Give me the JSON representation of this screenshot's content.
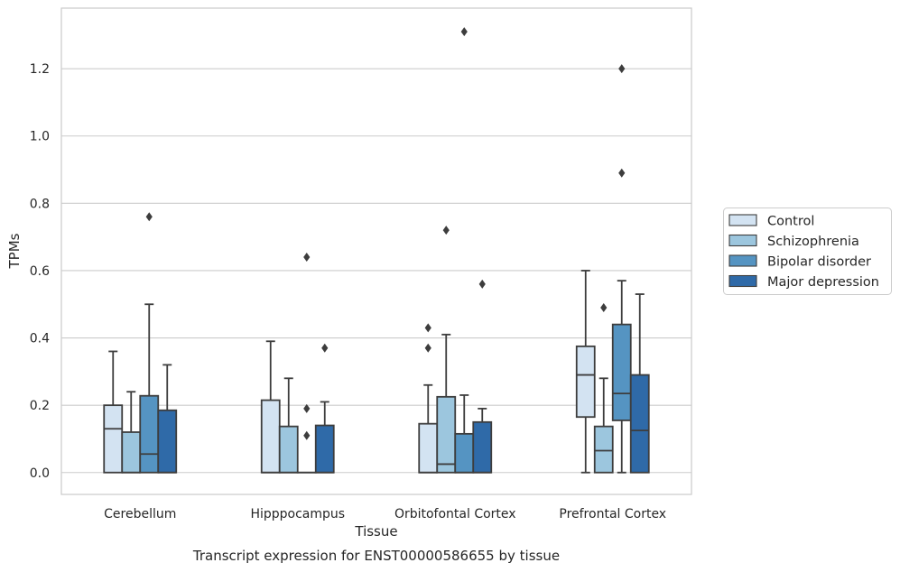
{
  "chart_data": {
    "type": "box",
    "xlabel": "Tissue",
    "ylabel": "TPMs",
    "caption": "Transcript expression for ENST00000586655 by tissue",
    "categories": [
      "Cerebellum",
      "Hipppocampus",
      "Orbitofontal Cortex",
      "Prefrontal Cortex"
    ],
    "ylim": [
      -0.065,
      1.38
    ],
    "yticks": [
      "0.0",
      "0.2",
      "0.4",
      "0.6",
      "0.8",
      "1.0",
      "1.2"
    ],
    "grid": true,
    "legend_placement": "right",
    "series": [
      {
        "name": "Control",
        "color": "#d3e3f2",
        "boxes": [
          {
            "q1": 0.0,
            "median": 0.13,
            "q3": 0.2,
            "whislo": 0.0,
            "whishi": 0.36,
            "fliers": []
          },
          {
            "q1": 0.0,
            "median": 0.0,
            "q3": 0.215,
            "whislo": 0.0,
            "whishi": 0.39,
            "fliers": []
          },
          {
            "q1": 0.0,
            "median": 0.0,
            "q3": 0.145,
            "whislo": 0.0,
            "whishi": 0.26,
            "fliers": [
              0.37,
              0.43
            ]
          },
          {
            "q1": 0.165,
            "median": 0.29,
            "q3": 0.375,
            "whislo": 0.0,
            "whishi": 0.6,
            "fliers": []
          }
        ]
      },
      {
        "name": "Schizophrenia",
        "color": "#9cc6de",
        "boxes": [
          {
            "q1": 0.0,
            "median": 0.0,
            "q3": 0.12,
            "whislo": 0.0,
            "whishi": 0.24,
            "fliers": []
          },
          {
            "q1": 0.0,
            "median": 0.0,
            "q3": 0.137,
            "whislo": 0.0,
            "whishi": 0.28,
            "fliers": []
          },
          {
            "q1": 0.0,
            "median": 0.025,
            "q3": 0.225,
            "whislo": 0.0,
            "whishi": 0.41,
            "fliers": [
              0.72
            ]
          },
          {
            "q1": 0.0,
            "median": 0.065,
            "q3": 0.137,
            "whislo": 0.0,
            "whishi": 0.28,
            "fliers": [
              0.49
            ]
          }
        ]
      },
      {
        "name": "Bipolar disorder",
        "color": "#5594c2",
        "boxes": [
          {
            "q1": 0.0,
            "median": 0.055,
            "q3": 0.228,
            "whislo": 0.0,
            "whishi": 0.5,
            "fliers": [
              0.76
            ]
          },
          {
            "q1": 0.0,
            "median": 0.0,
            "q3": 0.0,
            "whislo": 0.0,
            "whishi": 0.0,
            "fliers": [
              0.11,
              0.19,
              0.64
            ]
          },
          {
            "q1": 0.0,
            "median": 0.0,
            "q3": 0.115,
            "whislo": 0.0,
            "whishi": 0.23,
            "fliers": [
              1.31
            ]
          },
          {
            "q1": 0.155,
            "median": 0.235,
            "q3": 0.44,
            "whislo": 0.0,
            "whishi": 0.57,
            "fliers": [
              0.89,
              1.2
            ]
          }
        ]
      },
      {
        "name": "Major depression",
        "color": "#2f6aa8",
        "boxes": [
          {
            "q1": 0.0,
            "median": 0.0,
            "q3": 0.185,
            "whislo": 0.0,
            "whishi": 0.32,
            "fliers": []
          },
          {
            "q1": 0.0,
            "median": 0.0,
            "q3": 0.14,
            "whislo": 0.0,
            "whishi": 0.21,
            "fliers": [
              0.37
            ]
          },
          {
            "q1": 0.0,
            "median": 0.0,
            "q3": 0.15,
            "whislo": 0.0,
            "whishi": 0.19,
            "fliers": [
              0.56
            ]
          },
          {
            "q1": 0.0,
            "median": 0.125,
            "q3": 0.29,
            "whislo": 0.0,
            "whishi": 0.53,
            "fliers": []
          }
        ]
      }
    ]
  }
}
